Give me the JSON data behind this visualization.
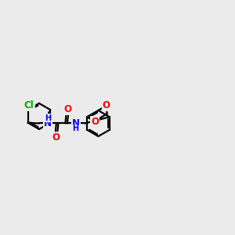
{
  "background_color": "#ebebeb",
  "bond_color": "#000000",
  "bond_width": 1.6,
  "atom_colors": {
    "N": "#0000ff",
    "O": "#ff0000",
    "Cl": "#00aa00"
  },
  "font_size": 8.5,
  "inner_ring_ratio": 0.75
}
